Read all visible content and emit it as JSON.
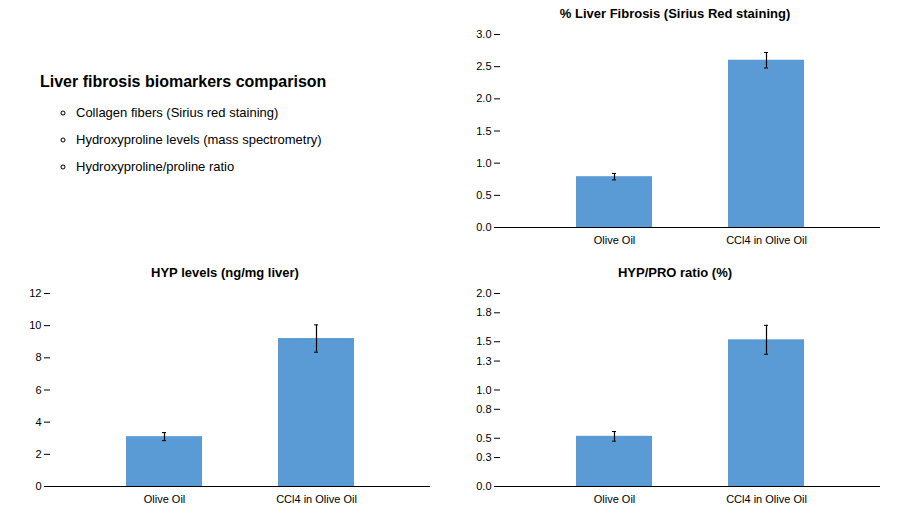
{
  "chart_data": [
    {
      "type": "text",
      "title": "Liver fibrosis biomarkers comparison",
      "annotations": [
        "Collagen fibers (Sirius red staining)",
        "Hydroxyproline levels (mass spectrometry)",
        "Hydroxyproline/proline ratio"
      ]
    },
    {
      "type": "bar",
      "title": "% Liver Fibrosis (Sirius Red staining)",
      "categories": [
        "Olive Oil",
        "CCl4 in Olive Oil"
      ],
      "values": [
        0.79,
        2.6
      ],
      "errors": [
        0.05,
        0.12
      ],
      "color": "#5b9bd5",
      "ylim": [
        0,
        3.0
      ],
      "yticks": [
        {
          "value": 0,
          "label": "0.0"
        },
        0.5,
        {
          "value": 1,
          "label": "1.0"
        },
        1.5,
        {
          "value": 2,
          "label": "2.0"
        },
        2.5,
        {
          "value": 3,
          "label": "3.0"
        }
      ],
      "grid": false
    },
    {
      "type": "bar",
      "title": "HYP levels (ng/mg liver)",
      "categories": [
        "Olive Oil",
        "CCl4 in Olive Oil"
      ],
      "values": [
        3.1,
        9.2
      ],
      "errors": [
        0.25,
        0.85
      ],
      "color": "#5b9bd5",
      "ylim": [
        0,
        12
      ],
      "yticks": [
        0,
        2,
        4,
        6,
        8,
        10,
        12
      ],
      "grid": false
    },
    {
      "type": "bar",
      "title": "HYP/PRO ratio (%)",
      "categories": [
        "Olive Oil",
        "CCl4 in Olive Oil"
      ],
      "values": [
        0.52,
        1.52
      ],
      "errors": [
        0.05,
        0.15
      ],
      "color": "#5b9bd5",
      "ylim": [
        0,
        2.0
      ],
      "yticks": [
        {
          "value": 0,
          "label": "0.0"
        },
        0.3,
        0.5,
        0.8,
        {
          "value": 1,
          "label": "1.0"
        },
        1.3,
        1.5,
        1.8,
        {
          "value": 2,
          "label": "2.0"
        }
      ],
      "grid": false
    }
  ]
}
